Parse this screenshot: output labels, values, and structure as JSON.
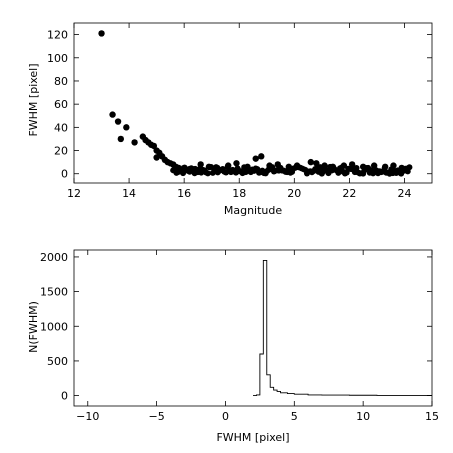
{
  "chart_data": [
    {
      "type": "scatter",
      "title": "",
      "xlabel": "Magnitude",
      "ylabel": "FWHM [pixel]",
      "xlim": [
        12,
        25
      ],
      "ylim": [
        -8,
        130
      ],
      "xticks": [
        12,
        14,
        16,
        18,
        20,
        22,
        24
      ],
      "yticks": [
        0,
        20,
        40,
        60,
        80,
        100,
        120
      ],
      "grid": false,
      "marker_color": "#000000",
      "points": [
        [
          13.0,
          121
        ],
        [
          13.4,
          51
        ],
        [
          13.6,
          45
        ],
        [
          13.7,
          30
        ],
        [
          13.9,
          40
        ],
        [
          14.2,
          27
        ],
        [
          14.5,
          32
        ],
        [
          14.6,
          29
        ],
        [
          14.7,
          27
        ],
        [
          14.8,
          25
        ],
        [
          14.9,
          24
        ],
        [
          15.0,
          20
        ],
        [
          15.0,
          14
        ],
        [
          15.1,
          18
        ],
        [
          15.2,
          15
        ],
        [
          15.3,
          12
        ],
        [
          15.4,
          10
        ],
        [
          15.5,
          9
        ],
        [
          15.6,
          8
        ],
        [
          15.7,
          6
        ],
        [
          15.8,
          5
        ],
        [
          16.0,
          5
        ],
        [
          16.2,
          4
        ],
        [
          16.4,
          4
        ],
        [
          16.6,
          8
        ],
        [
          16.9,
          6
        ],
        [
          17.2,
          5
        ],
        [
          17.6,
          7
        ],
        [
          17.9,
          9
        ],
        [
          18.3,
          6
        ],
        [
          18.6,
          13
        ],
        [
          18.8,
          15
        ],
        [
          19.1,
          7
        ],
        [
          19.4,
          8
        ],
        [
          19.8,
          6
        ],
        [
          20.1,
          7
        ],
        [
          20.6,
          10
        ],
        [
          20.8,
          9
        ],
        [
          21.1,
          7
        ],
        [
          21.4,
          6
        ],
        [
          21.8,
          7
        ],
        [
          22.1,
          8
        ],
        [
          22.5,
          6
        ],
        [
          22.9,
          7
        ],
        [
          23.3,
          6
        ],
        [
          23.6,
          7
        ],
        [
          23.9,
          5
        ],
        [
          24.1,
          4
        ]
      ],
      "dense_band": {
        "x_range": [
          15.6,
          24.2
        ],
        "y_range": [
          0,
          6
        ]
      }
    },
    {
      "type": "step",
      "title": "",
      "xlabel": "FWHM [pixel]",
      "ylabel": "N(FWHM)",
      "xlim": [
        -11,
        15
      ],
      "ylim": [
        -150,
        2100
      ],
      "xticks": [
        -10,
        -5,
        0,
        5,
        10,
        15
      ],
      "yticks": [
        0,
        500,
        1000,
        1500,
        2000
      ],
      "grid": false,
      "bins": [
        [
          2.0,
          0
        ],
        [
          2.25,
          10
        ],
        [
          2.5,
          600
        ],
        [
          2.75,
          1950
        ],
        [
          3.0,
          300
        ],
        [
          3.25,
          120
        ],
        [
          3.5,
          80
        ],
        [
          3.75,
          60
        ],
        [
          4.0,
          40
        ],
        [
          4.5,
          30
        ],
        [
          5.0,
          20
        ],
        [
          6.0,
          10
        ],
        [
          7.0,
          8
        ],
        [
          9.0,
          5
        ],
        [
          11.0,
          3
        ],
        [
          13.0,
          2
        ],
        [
          15.0,
          2
        ]
      ]
    }
  ]
}
